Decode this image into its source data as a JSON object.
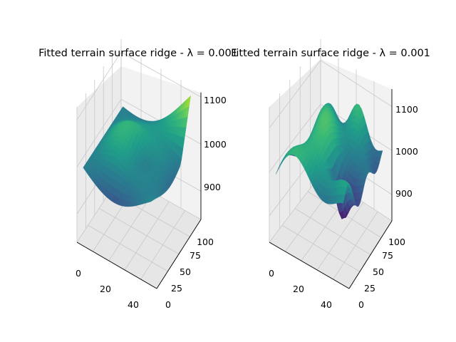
{
  "chart_data": [
    {
      "type": "surface3d",
      "title": "Fitted terrain surface ridge - $\\lambda = 0.001$",
      "title_display": "Fitted terrain surface ridge - λ = 0.001",
      "xlabel": "",
      "ylabel": "",
      "zlabel": "",
      "x_ticks": [
        "0",
        "20",
        "40"
      ],
      "y_ticks": [
        "0",
        "25",
        "50",
        "75",
        "100"
      ],
      "z_ticks": [
        "900",
        "1000",
        "1100"
      ],
      "xlim": [
        0,
        50
      ],
      "ylim": [
        0,
        100
      ],
      "zlim": [
        840,
        1120
      ],
      "colormap": "viridis",
      "grid": true,
      "description_values": {
        "z_min": 850,
        "z_max": 1105
      }
    },
    {
      "type": "surface3d",
      "title": "Fitted terrain surface ridge - $\\lambda = 0.001$",
      "title_display": "Fitted terrain surface ridge - λ = 0.001",
      "xlabel": "",
      "ylabel": "",
      "zlabel": "",
      "x_ticks": [
        "0",
        "20",
        "40"
      ],
      "y_ticks": [
        "0",
        "25",
        "50",
        "75",
        "100"
      ],
      "z_ticks": [
        "900",
        "1000",
        "1100"
      ],
      "xlim": [
        0,
        50
      ],
      "ylim": [
        0,
        100
      ],
      "zlim": [
        840,
        1140
      ],
      "colormap": "viridis",
      "grid": true,
      "description_values": {
        "z_min": 830,
        "z_max": 1060
      }
    }
  ]
}
